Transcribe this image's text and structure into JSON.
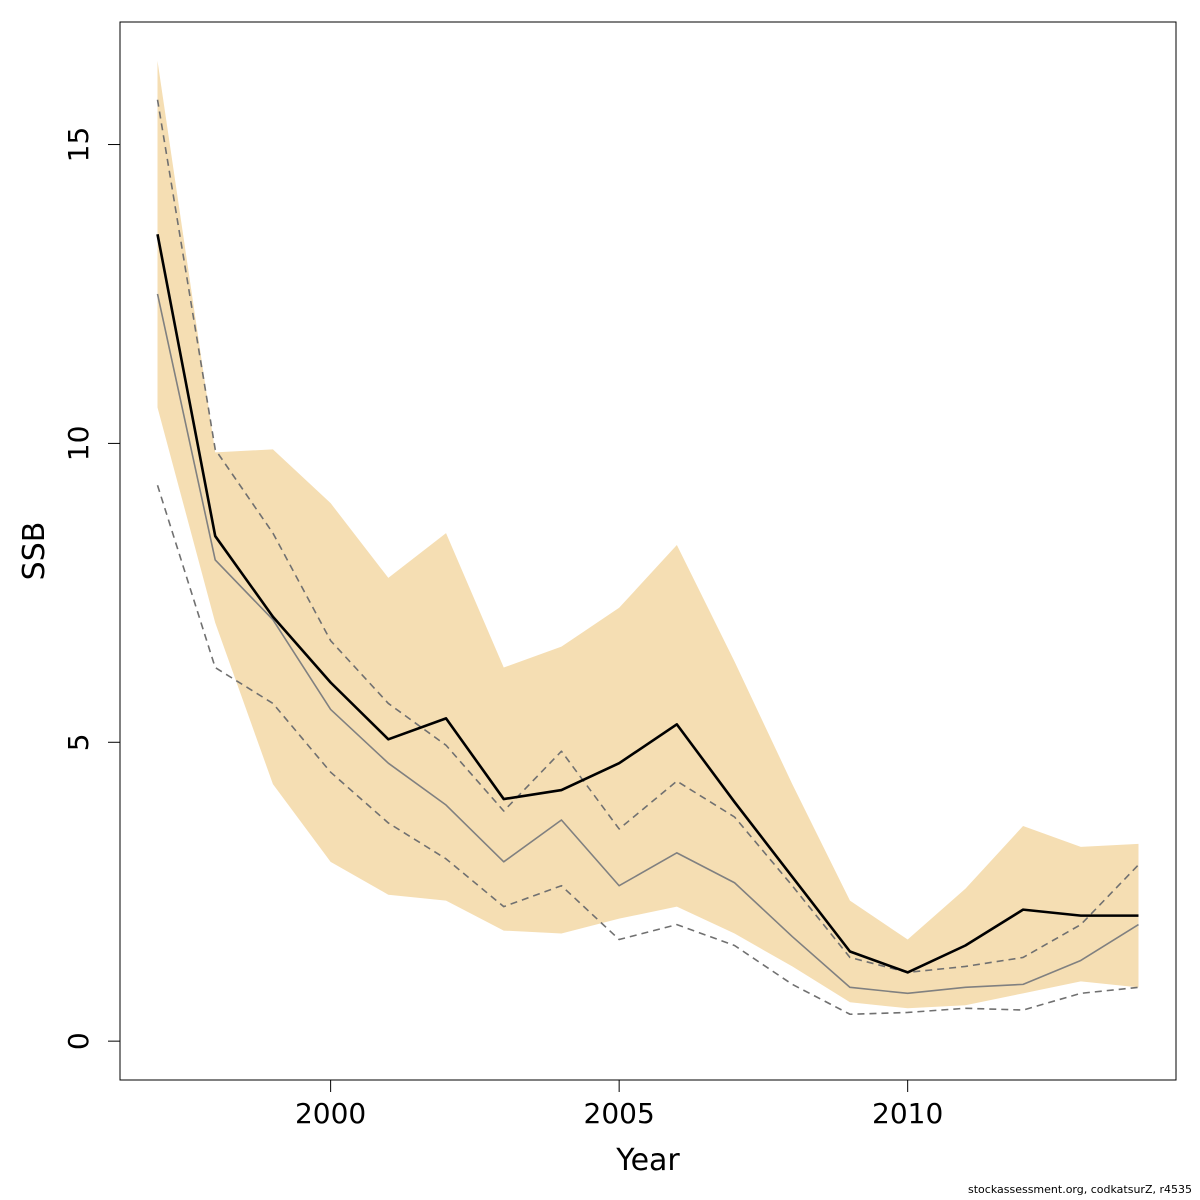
{
  "chart_data": {
    "type": "line",
    "xlabel": "Year",
    "ylabel": "SSB",
    "xlim": [
      1996.35,
      2014.65
    ],
    "ylim": [
      -0.65,
      17.05
    ],
    "x_ticks": [
      2000,
      2005,
      2010
    ],
    "y_ticks": [
      0,
      5,
      10,
      15
    ],
    "grid": false,
    "legend": "none",
    "x": [
      1997,
      1998,
      1999,
      2000,
      2001,
      2002,
      2003,
      2004,
      2005,
      2006,
      2007,
      2008,
      2009,
      2010,
      2011,
      2012,
      2013,
      2014
    ],
    "band": {
      "color": "#F5DEB3",
      "upper": [
        16.4,
        9.85,
        9.9,
        9.0,
        7.75,
        8.5,
        6.25,
        6.6,
        7.25,
        8.3,
        6.35,
        4.3,
        2.35,
        1.7,
        2.55,
        3.6,
        3.25,
        3.3
      ],
      "lower": [
        10.6,
        7.0,
        4.3,
        3.0,
        2.45,
        2.35,
        1.85,
        1.8,
        2.05,
        2.25,
        1.8,
        1.25,
        0.65,
        0.55,
        0.6,
        0.8,
        1.0,
        0.9
      ]
    },
    "series": [
      {
        "style": "solid",
        "color": "#000000",
        "width": 2.6,
        "values": [
          13.5,
          8.45,
          7.1,
          6.0,
          5.05,
          5.4,
          4.05,
          4.2,
          4.65,
          5.3,
          4.0,
          2.75,
          1.5,
          1.15,
          1.6,
          2.2,
          2.1,
          2.1
        ]
      },
      {
        "style": "solid",
        "color": "#808080",
        "width": 1.6,
        "values": [
          12.5,
          8.05,
          7.05,
          5.55,
          4.65,
          3.95,
          3.0,
          3.7,
          2.6,
          3.15,
          2.65,
          1.75,
          0.9,
          0.8,
          0.9,
          0.95,
          1.35,
          1.95
        ]
      },
      {
        "style": "dashed",
        "color": "#707070",
        "width": 1.6,
        "values": [
          15.75,
          9.9,
          8.5,
          6.7,
          5.65,
          4.95,
          3.85,
          4.85,
          3.55,
          4.35,
          3.75,
          2.6,
          1.4,
          1.15,
          1.25,
          1.4,
          1.95,
          2.95
        ]
      },
      {
        "style": "dashed",
        "color": "#707070",
        "width": 1.6,
        "values": [
          9.3,
          6.25,
          5.65,
          4.5,
          3.65,
          3.05,
          2.25,
          2.6,
          1.7,
          1.95,
          1.6,
          0.95,
          0.45,
          0.48,
          0.55,
          0.52,
          0.8,
          0.9
        ]
      }
    ]
  },
  "footer": "stockassessment.org, codkatsurZ, r4535"
}
